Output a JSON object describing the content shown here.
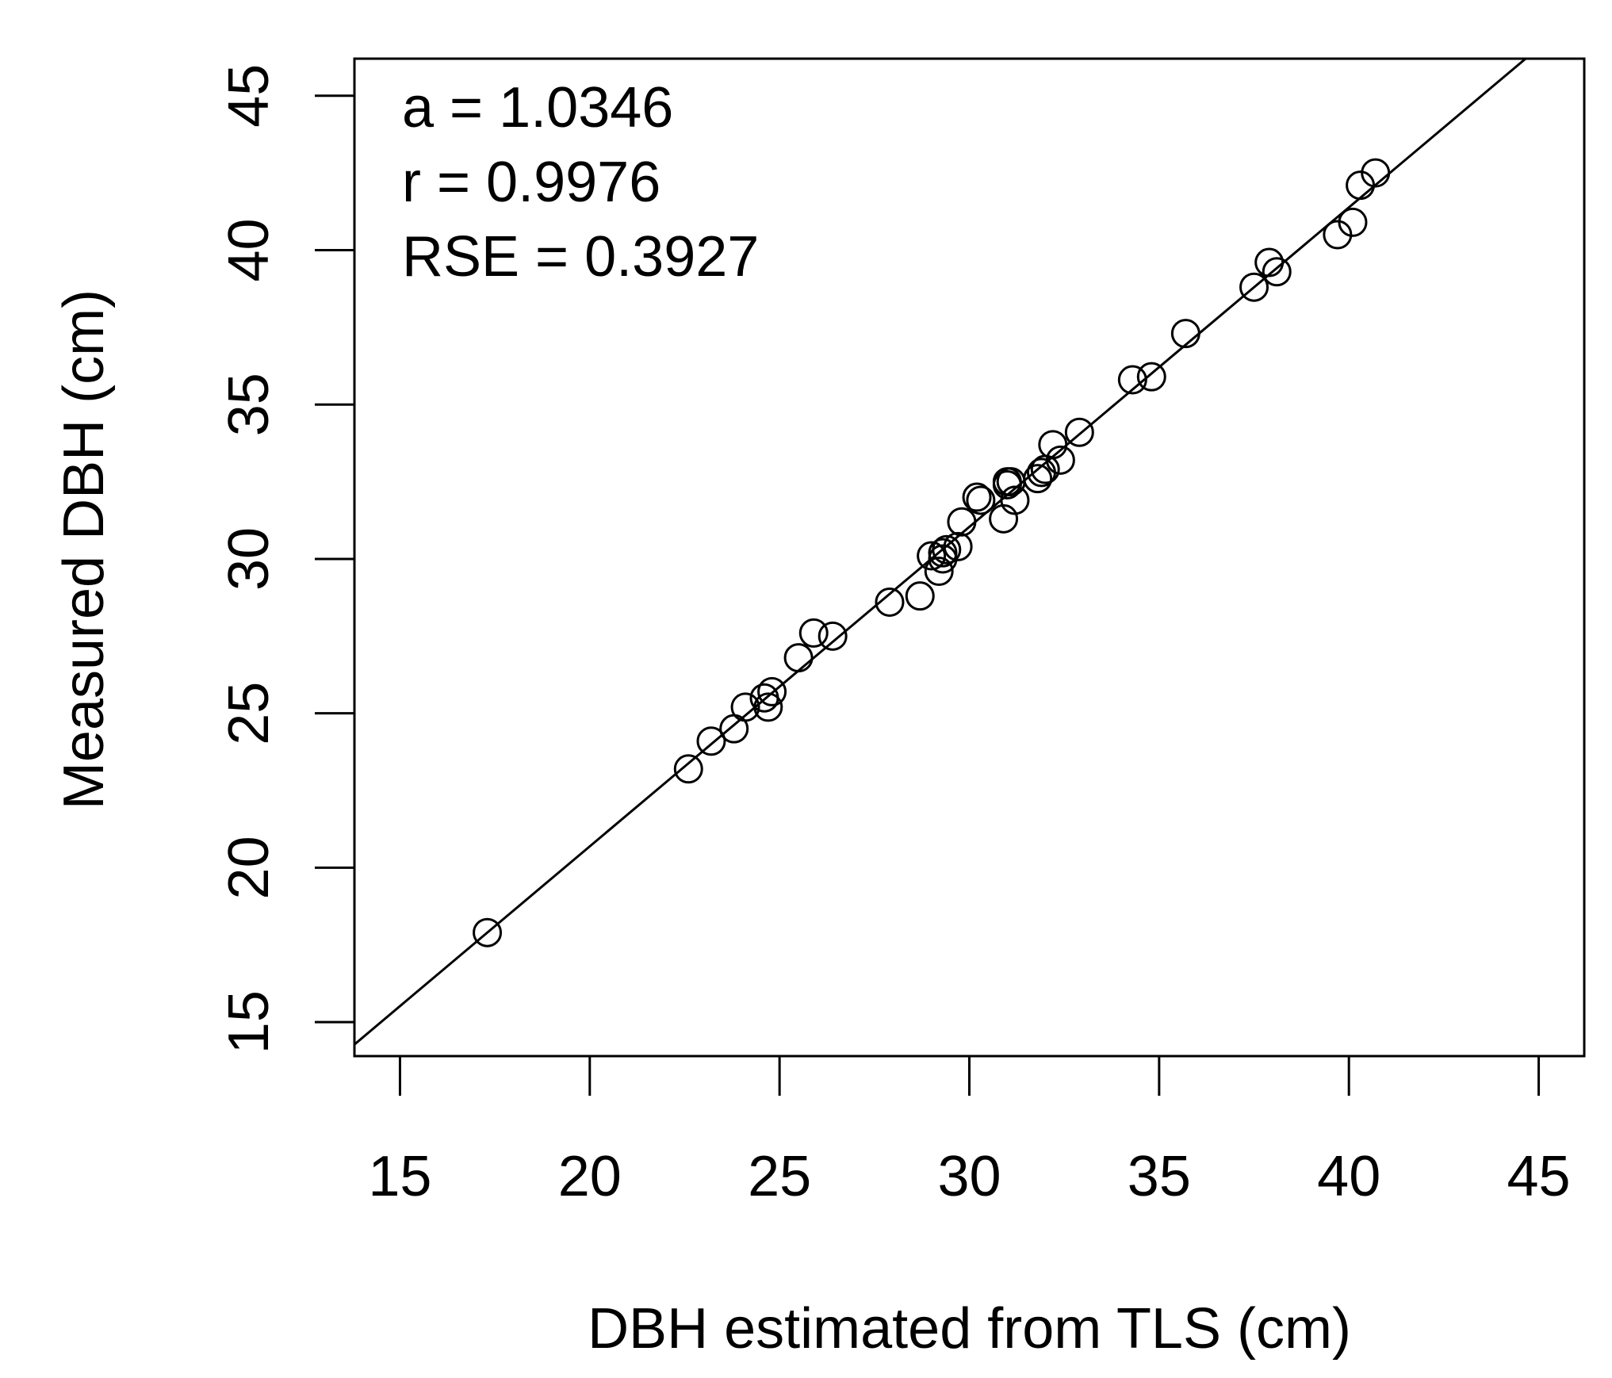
{
  "chart_data": {
    "type": "scatter",
    "title": "",
    "xlabel": "DBH estimated from TLS (cm)",
    "ylabel": "Measured DBH (cm)",
    "xlim": [
      13.8,
      46.2
    ],
    "ylim": [
      13.9,
      46.2
    ],
    "xticks": [
      15,
      20,
      25,
      30,
      35,
      40,
      45
    ],
    "yticks": [
      15,
      20,
      25,
      30,
      35,
      40,
      45
    ],
    "xtick_labels": [
      "15",
      "20",
      "25",
      "30",
      "35",
      "40",
      "45"
    ],
    "ytick_labels": [
      "15",
      "20",
      "25",
      "30",
      "35",
      "40",
      "45"
    ],
    "grid": false,
    "legend": "none",
    "fit_line": {
      "slope": 1.0346,
      "intercept": 0.0
    },
    "annotations": [
      "a =  1.0346",
      "r =  0.9976",
      "RSE =  0.3927"
    ],
    "series": [
      {
        "name": "trees",
        "marker": "open-circle",
        "x": [
          17.3,
          22.6,
          23.2,
          23.8,
          24.1,
          24.6,
          24.7,
          24.8,
          25.5,
          25.9,
          26.4,
          27.9,
          28.7,
          29.0,
          29.2,
          29.3,
          29.4,
          29.3,
          29.7,
          29.8,
          30.2,
          30.3,
          30.9,
          31.0,
          31.0,
          31.1,
          31.2,
          31.8,
          31.9,
          32.0,
          32.2,
          32.4,
          32.9,
          34.3,
          34.8,
          35.7,
          37.5,
          37.9,
          38.1,
          39.7,
          40.1,
          40.3,
          40.7
        ],
        "y": [
          17.9,
          23.2,
          24.1,
          24.5,
          25.2,
          25.5,
          25.2,
          25.7,
          26.8,
          27.6,
          27.5,
          28.6,
          28.8,
          30.1,
          29.6,
          30.0,
          30.3,
          30.2,
          30.4,
          31.2,
          32.0,
          31.9,
          31.3,
          32.4,
          32.5,
          32.5,
          31.9,
          32.6,
          32.8,
          32.9,
          33.7,
          33.2,
          34.1,
          35.8,
          35.9,
          37.3,
          38.8,
          39.6,
          39.3,
          40.5,
          40.9,
          42.1,
          42.5
        ]
      }
    ]
  }
}
